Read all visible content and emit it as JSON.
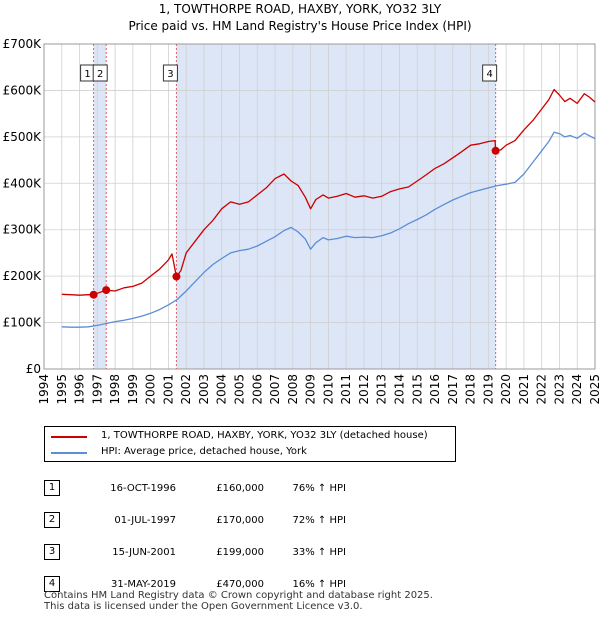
{
  "title": "1, TOWTHORPE ROAD, HAXBY, YORK, YO32 3LY",
  "subtitle": "Price paid vs. HM Land Registry's House Price Index (HPI)",
  "colors": {
    "property": "#cc0000",
    "hpi": "#5b8ed6",
    "shade": "#dde6f7",
    "grid": "#d0d0d0",
    "vline": "#e06060"
  },
  "legend": [
    {
      "label": "1, TOWTHORPE ROAD, HAXBY, YORK, YO32 3LY (detached house)",
      "color": "#cc0000"
    },
    {
      "label": "HPI: Average price, detached house, York",
      "color": "#5b8ed6"
    }
  ],
  "sales": [
    {
      "num": "1",
      "date": "16-OCT-1996",
      "price": "£160,000",
      "hpi": "76% ↑ HPI"
    },
    {
      "num": "2",
      "date": "01-JUL-1997",
      "price": "£170,000",
      "hpi": "72% ↑ HPI"
    },
    {
      "num": "3",
      "date": "15-JUN-2001",
      "price": "£199,000",
      "hpi": "33% ↑ HPI"
    },
    {
      "num": "4",
      "date": "31-MAY-2019",
      "price": "£470,000",
      "hpi": "16% ↑ HPI"
    }
  ],
  "footer": {
    "line1": "Contains HM Land Registry data © Crown copyright and database right 2025.",
    "line2": "This data is licensed under the Open Government Licence v3.0."
  },
  "chart_data": {
    "type": "line",
    "title": "1, TOWTHORPE ROAD, HAXBY, YORK, YO32 3LY",
    "subtitle": "Price paid vs. HM Land Registry's House Price Index (HPI)",
    "xlim": [
      1994,
      2025
    ],
    "ylim": [
      0,
      700000
    ],
    "x_ticks": [
      1994,
      1995,
      1996,
      1997,
      1998,
      1999,
      2000,
      2001,
      2002,
      2003,
      2004,
      2005,
      2006,
      2007,
      2008,
      2009,
      2010,
      2011,
      2012,
      2013,
      2014,
      2015,
      2016,
      2017,
      2018,
      2019,
      2020,
      2021,
      2022,
      2023,
      2024,
      2025
    ],
    "y_ticks": [
      0,
      100000,
      200000,
      300000,
      400000,
      500000,
      600000,
      700000
    ],
    "y_tick_labels": [
      "£0",
      "£100K",
      "£200K",
      "£300K",
      "£400K",
      "£500K",
      "£600K",
      "£700K"
    ],
    "grid": true,
    "shaded_ranges": [
      [
        1996.79,
        1997.5
      ],
      [
        2001.45,
        2019.41
      ]
    ],
    "sale_markers": [
      {
        "label": "1",
        "x": 1996.79,
        "y": 160000
      },
      {
        "label": "2",
        "x": 1997.5,
        "y": 170000
      },
      {
        "label": "3",
        "x": 2001.45,
        "y": 199000
      },
      {
        "label": "4",
        "x": 2019.41,
        "y": 470000
      }
    ],
    "series": [
      {
        "name": "1, TOWTHORPE ROAD, HAXBY, YORK, YO32 3LY (detached house)",
        "x": [
          1995.0,
          1995.5,
          1996.0,
          1996.5,
          1996.79,
          1997.0,
          1997.5,
          1998.0,
          1998.5,
          1999.0,
          1999.5,
          2000.0,
          2000.5,
          2001.0,
          2001.2,
          2001.45,
          2001.7,
          2002.0,
          2002.5,
          2003.0,
          2003.5,
          2004.0,
          2004.5,
          2005.0,
          2005.5,
          2006.0,
          2006.5,
          2007.0,
          2007.5,
          2007.9,
          2008.3,
          2008.7,
          2009.0,
          2009.3,
          2009.7,
          2010.0,
          2010.5,
          2011.0,
          2011.5,
          2012.0,
          2012.5,
          2013.0,
          2013.5,
          2014.0,
          2014.5,
          2015.0,
          2015.5,
          2016.0,
          2016.5,
          2017.0,
          2017.5,
          2018.0,
          2018.5,
          2019.0,
          2019.38,
          2019.41,
          2019.7,
          2020.0,
          2020.5,
          2021.0,
          2021.5,
          2022.0,
          2022.4,
          2022.7,
          2023.0,
          2023.3,
          2023.6,
          2024.0,
          2024.4,
          2024.7,
          2025.0
        ],
        "values": [
          161000,
          160000,
          159000,
          160000,
          160000,
          163000,
          170000,
          168000,
          175000,
          178000,
          185000,
          200000,
          215000,
          235000,
          248000,
          199000,
          212000,
          250000,
          275000,
          300000,
          320000,
          345000,
          360000,
          355000,
          360000,
          375000,
          390000,
          410000,
          420000,
          405000,
          395000,
          370000,
          345000,
          365000,
          375000,
          368000,
          372000,
          378000,
          370000,
          373000,
          368000,
          372000,
          382000,
          388000,
          392000,
          405000,
          418000,
          432000,
          442000,
          455000,
          468000,
          482000,
          485000,
          490000,
          492000,
          470000,
          472000,
          482000,
          492000,
          515000,
          535000,
          560000,
          580000,
          602000,
          590000,
          576000,
          583000,
          572000,
          593000,
          585000,
          575000
        ]
      },
      {
        "name": "HPI: Average price, detached house, York",
        "x": [
          1995.0,
          1995.5,
          1996.0,
          1996.5,
          1997.0,
          1997.5,
          1998.0,
          1998.5,
          1999.0,
          1999.5,
          2000.0,
          2000.5,
          2001.0,
          2001.5,
          2002.0,
          2002.5,
          2003.0,
          2003.5,
          2004.0,
          2004.5,
          2005.0,
          2005.5,
          2006.0,
          2006.5,
          2007.0,
          2007.5,
          2007.9,
          2008.3,
          2008.7,
          2009.0,
          2009.3,
          2009.7,
          2010.0,
          2010.5,
          2011.0,
          2011.5,
          2012.0,
          2012.5,
          2013.0,
          2013.5,
          2014.0,
          2014.5,
          2015.0,
          2015.5,
          2016.0,
          2016.5,
          2017.0,
          2017.5,
          2018.0,
          2018.5,
          2019.0,
          2019.5,
          2020.0,
          2020.5,
          2021.0,
          2021.5,
          2022.0,
          2022.4,
          2022.7,
          2023.0,
          2023.3,
          2023.6,
          2024.0,
          2024.4,
          2024.7,
          2025.0
        ],
        "values": [
          91000,
          90000,
          90000,
          91000,
          94000,
          98000,
          102000,
          105000,
          109000,
          114000,
          120000,
          128000,
          138000,
          150000,
          168000,
          188000,
          208000,
          225000,
          238000,
          250000,
          255000,
          258000,
          265000,
          275000,
          285000,
          298000,
          305000,
          295000,
          280000,
          258000,
          272000,
          283000,
          278000,
          281000,
          286000,
          283000,
          284000,
          283000,
          287000,
          293000,
          302000,
          313000,
          322000,
          332000,
          344000,
          354000,
          364000,
          372000,
          380000,
          385000,
          390000,
          395000,
          398000,
          402000,
          420000,
          445000,
          470000,
          490000,
          510000,
          507000,
          500000,
          503000,
          497000,
          508000,
          502000,
          496000
        ]
      }
    ]
  }
}
